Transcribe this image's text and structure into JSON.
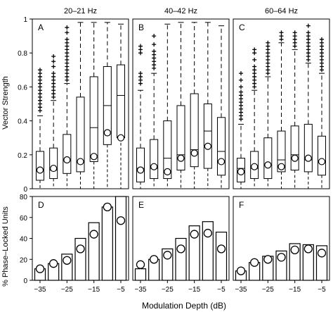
{
  "figure": {
    "ylabel_top": "Vector Strength",
    "ylabel_bottom": "% Phase–Locked Units",
    "xlabel": "Modulation Depth (dB)",
    "x_ticks": [
      "−35",
      "−25",
      "−15",
      "−5"
    ]
  },
  "chart_data": [
    {
      "type": "box",
      "panel": "A",
      "title": "20–21 Hz",
      "ylim": [
        0,
        1
      ],
      "yticks": [
        "0",
        "0.2",
        "0.4",
        "0.6",
        "0.8",
        "1"
      ],
      "x": [
        -35,
        -30,
        -25,
        -20,
        -15,
        -10,
        -5
      ],
      "boxes": [
        {
          "q1": 0.05,
          "median": 0.11,
          "q3": 0.22,
          "lower_whisker": 0.0,
          "upper_whisker": 0.43,
          "mean": 0.11,
          "outliers": [
            0.46,
            0.48,
            0.5,
            0.52,
            0.54,
            0.56,
            0.58,
            0.6,
            0.62,
            0.64,
            0.66,
            0.68,
            0.7
          ]
        },
        {
          "q1": 0.06,
          "median": 0.11,
          "q3": 0.24,
          "lower_whisker": 0.0,
          "upper_whisker": 0.52,
          "mean": 0.12,
          "outliers": [
            0.54,
            0.56,
            0.58,
            0.6,
            0.62,
            0.64,
            0.66,
            0.68,
            0.72,
            0.75,
            0.78
          ]
        },
        {
          "q1": 0.09,
          "median": 0.17,
          "q3": 0.32,
          "lower_whisker": 0.0,
          "upper_whisker": 0.62,
          "mean": 0.17,
          "outliers": [
            0.64,
            0.66,
            0.68,
            0.7,
            0.72,
            0.74,
            0.76,
            0.78,
            0.8,
            0.82,
            0.84,
            0.86,
            0.88,
            0.92,
            0.95
          ]
        },
        {
          "q1": 0.1,
          "median": 0.16,
          "q3": 0.54,
          "lower_whisker": 0.0,
          "upper_whisker": 0.98,
          "mean": 0.16,
          "outliers": []
        },
        {
          "q1": 0.16,
          "median": 0.36,
          "q3": 0.66,
          "lower_whisker": 0.0,
          "upper_whisker": 0.98,
          "mean": 0.19,
          "outliers": []
        },
        {
          "q1": 0.26,
          "median": 0.49,
          "q3": 0.72,
          "lower_whisker": 0.0,
          "upper_whisker": 0.98,
          "mean": 0.33,
          "outliers": []
        },
        {
          "q1": 0.3,
          "median": 0.55,
          "q3": 0.73,
          "lower_whisker": 0.0,
          "upper_whisker": 0.97,
          "mean": 0.3,
          "outliers": []
        }
      ]
    },
    {
      "type": "box",
      "panel": "B",
      "title": "40–42 Hz",
      "ylim": [
        0,
        1
      ],
      "x": [
        -35,
        -30,
        -25,
        -20,
        -15,
        -10,
        -5
      ],
      "boxes": [
        {
          "q1": 0.04,
          "median": 0.12,
          "q3": 0.24,
          "lower_whisker": 0.0,
          "upper_whisker": 0.58,
          "mean": 0.11,
          "outliers": [
            0.62,
            0.64,
            0.66,
            0.68,
            0.8,
            0.82,
            0.84
          ]
        },
        {
          "q1": 0.06,
          "median": 0.12,
          "q3": 0.29,
          "lower_whisker": 0.0,
          "upper_whisker": 0.68,
          "mean": 0.13,
          "outliers": [
            0.71,
            0.73,
            0.75,
            0.77,
            0.79,
            0.81,
            0.85,
            0.9
          ]
        },
        {
          "q1": 0.06,
          "median": 0.18,
          "q3": 0.4,
          "lower_whisker": 0.0,
          "upper_whisker": 0.97,
          "mean": 0.1,
          "outliers": []
        },
        {
          "q1": 0.11,
          "median": 0.2,
          "q3": 0.49,
          "lower_whisker": 0.0,
          "upper_whisker": 0.98,
          "mean": 0.18,
          "outliers": []
        },
        {
          "q1": 0.13,
          "median": 0.23,
          "q3": 0.56,
          "lower_whisker": 0.0,
          "upper_whisker": 0.98,
          "mean": 0.21,
          "outliers": []
        },
        {
          "q1": 0.12,
          "median": 0.34,
          "q3": 0.5,
          "lower_whisker": 0.0,
          "upper_whisker": 0.98,
          "mean": 0.25,
          "outliers": []
        },
        {
          "q1": 0.08,
          "median": 0.22,
          "q3": 0.42,
          "lower_whisker": 0.0,
          "upper_whisker": 0.96,
          "mean": 0.16,
          "outliers": []
        }
      ]
    },
    {
      "type": "box",
      "panel": "C",
      "title": "60–64 Hz",
      "ylim": [
        0,
        1
      ],
      "x": [
        -35,
        -30,
        -25,
        -20,
        -15,
        -10,
        -5
      ],
      "boxes": [
        {
          "q1": 0.04,
          "median": 0.12,
          "q3": 0.18,
          "lower_whisker": 0.0,
          "upper_whisker": 0.38,
          "mean": 0.1,
          "outliers": [
            0.41,
            0.43,
            0.45,
            0.47,
            0.49,
            0.51,
            0.53,
            0.55,
            0.57,
            0.6,
            0.64,
            0.68
          ]
        },
        {
          "q1": 0.06,
          "median": 0.12,
          "q3": 0.22,
          "lower_whisker": 0.0,
          "upper_whisker": 0.58,
          "mean": 0.13,
          "outliers": [
            0.6,
            0.62,
            0.64,
            0.66,
            0.68,
            0.7,
            0.72,
            0.76,
            0.8,
            0.82
          ]
        },
        {
          "q1": 0.06,
          "median": 0.14,
          "q3": 0.3,
          "lower_whisker": 0.0,
          "upper_whisker": 0.66,
          "mean": 0.14,
          "outliers": [
            0.68,
            0.7,
            0.72,
            0.74,
            0.76,
            0.78,
            0.8,
            0.82,
            0.84,
            0.86
          ]
        },
        {
          "q1": 0.1,
          "median": 0.17,
          "q3": 0.34,
          "lower_whisker": 0.0,
          "upper_whisker": 0.86,
          "mean": 0.13,
          "outliers": [
            0.88,
            0.9,
            0.92
          ]
        },
        {
          "q1": 0.11,
          "median": 0.2,
          "q3": 0.37,
          "lower_whisker": 0.0,
          "upper_whisker": 0.82,
          "mean": 0.18,
          "outliers": [
            0.84,
            0.86,
            0.88,
            0.9,
            0.92
          ]
        },
        {
          "q1": 0.1,
          "median": 0.17,
          "q3": 0.38,
          "lower_whisker": 0.0,
          "upper_whisker": 0.74,
          "mean": 0.18,
          "outliers": [
            0.76,
            0.78,
            0.8,
            0.82,
            0.84,
            0.86,
            0.88,
            0.9,
            0.92,
            0.96
          ]
        },
        {
          "q1": 0.08,
          "median": 0.16,
          "q3": 0.31,
          "lower_whisker": 0.0,
          "upper_whisker": 0.68,
          "mean": 0.16,
          "outliers": [
            0.7,
            0.72,
            0.74,
            0.76,
            0.78,
            0.8,
            0.82,
            0.84,
            0.86,
            0.88
          ]
        }
      ]
    },
    {
      "type": "bar",
      "panel": "D",
      "ylim": [
        0,
        80
      ],
      "yticks": [
        "0",
        "20",
        "40",
        "60",
        "80"
      ],
      "x": [
        -35,
        -30,
        -25,
        -20,
        -15,
        -10,
        -5
      ],
      "values": [
        11,
        16,
        25,
        40,
        55,
        70,
        80
      ],
      "markers": [
        11,
        16,
        19,
        30,
        44,
        70,
        57
      ]
    },
    {
      "type": "bar",
      "panel": "E",
      "ylim": [
        0,
        80
      ],
      "x": [
        -35,
        -30,
        -25,
        -20,
        -15,
        -10,
        -5
      ],
      "values": [
        11,
        20,
        30,
        40,
        52,
        56,
        46
      ],
      "markers": [
        15,
        20,
        24,
        30,
        44,
        45,
        30
      ]
    },
    {
      "type": "bar",
      "panel": "F",
      "ylim": [
        0,
        80
      ],
      "x": [
        -35,
        -30,
        -25,
        -20,
        -15,
        -10,
        -5
      ],
      "values": [
        9,
        17,
        23,
        28,
        35,
        34,
        33
      ],
      "markers": [
        9,
        17,
        20,
        22,
        29,
        30,
        26
      ]
    }
  ]
}
